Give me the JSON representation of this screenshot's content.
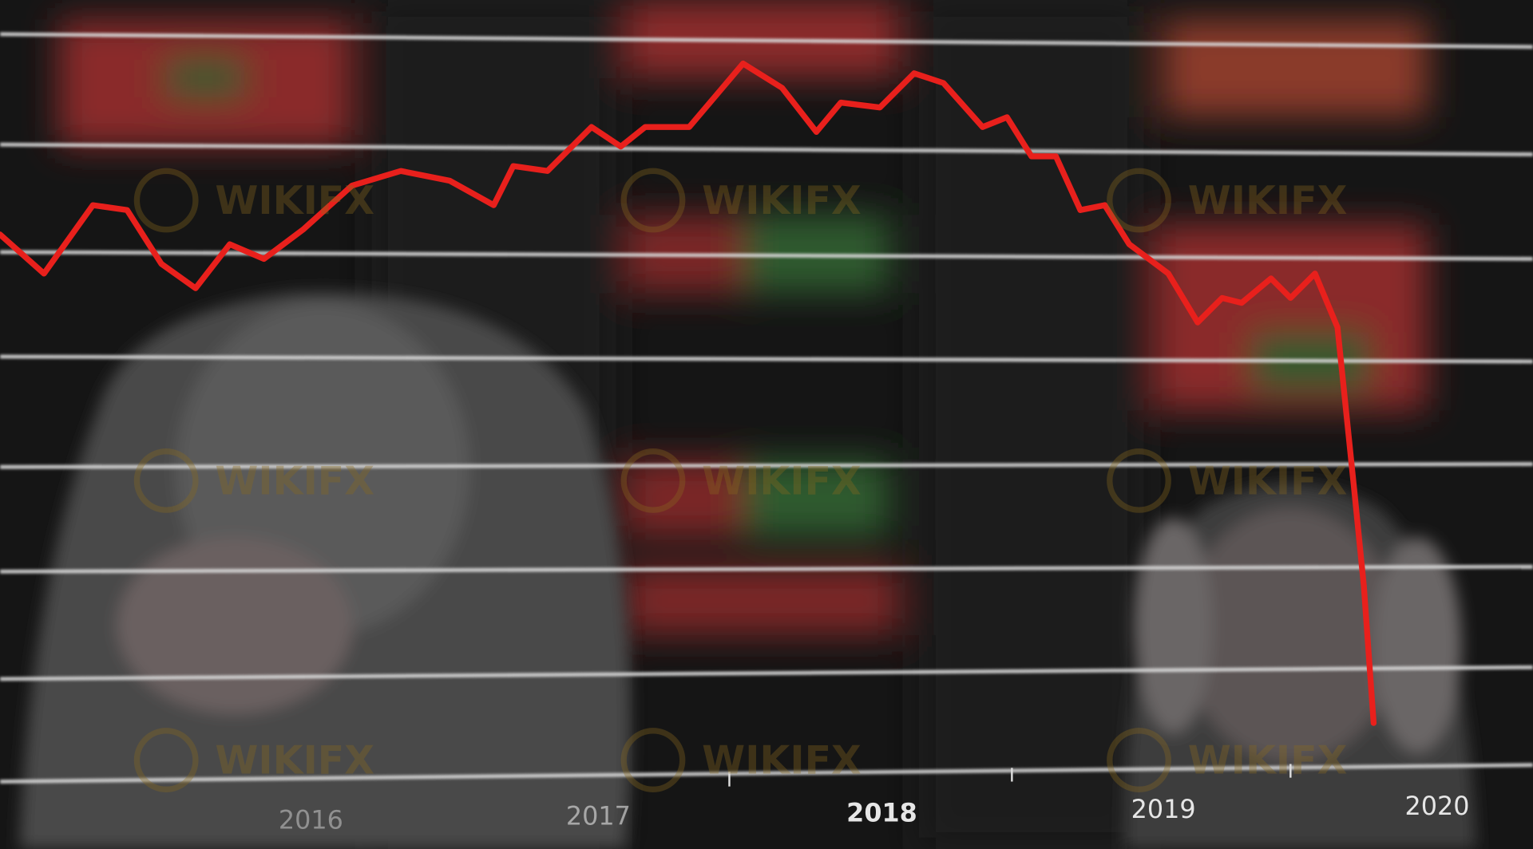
{
  "axis_labels": [
    "2016",
    "2017",
    "2018",
    "2019",
    "2020"
  ],
  "watermark": "WIKIFX"
}
